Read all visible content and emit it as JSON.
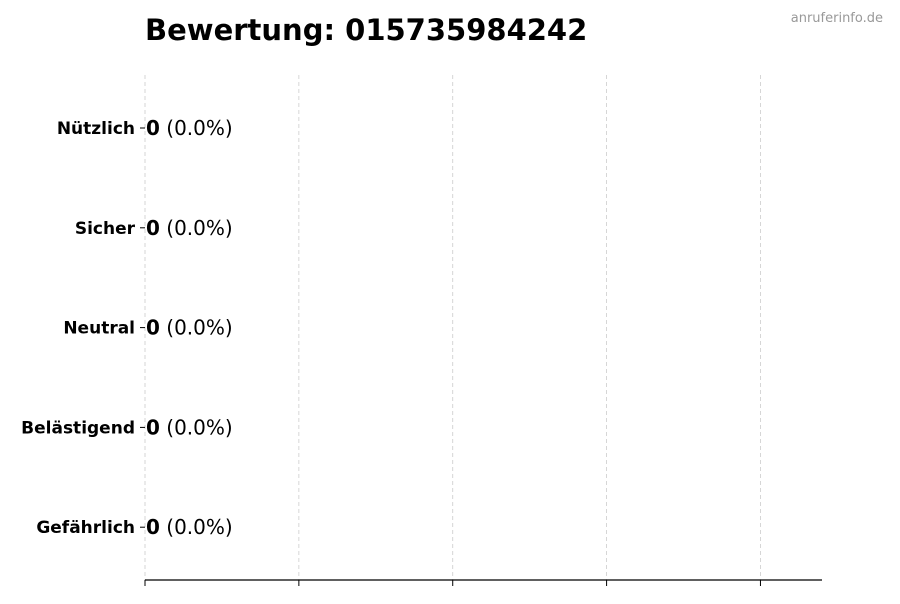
{
  "watermark": "anruferinfo.de",
  "chart_data": {
    "type": "bar",
    "orientation": "horizontal",
    "title": "Bewertung: 015735984242",
    "categories": [
      "Nützlich",
      "Sicher",
      "Neutral",
      "Belästigend",
      "Gefährlich"
    ],
    "values": [
      0,
      0,
      0,
      0,
      0
    ],
    "labels": [
      {
        "count": "0",
        "pct": "(0.0%)"
      },
      {
        "count": "0",
        "pct": "(0.0%)"
      },
      {
        "count": "0",
        "pct": "(0.0%)"
      },
      {
        "count": "0",
        "pct": "(0.0%)"
      },
      {
        "count": "0",
        "pct": "(0.0%)"
      }
    ],
    "xlabel": "",
    "ylabel": "",
    "xlim": [
      0,
      4.4
    ],
    "xticks": [
      0,
      1,
      2,
      3,
      4
    ],
    "xtick_labels_shown": false,
    "grid": "x-dashed",
    "colors": {
      "text": "#000000",
      "grid": "#cccccc",
      "watermark": "#999999",
      "bar_edge": "#000000"
    }
  }
}
